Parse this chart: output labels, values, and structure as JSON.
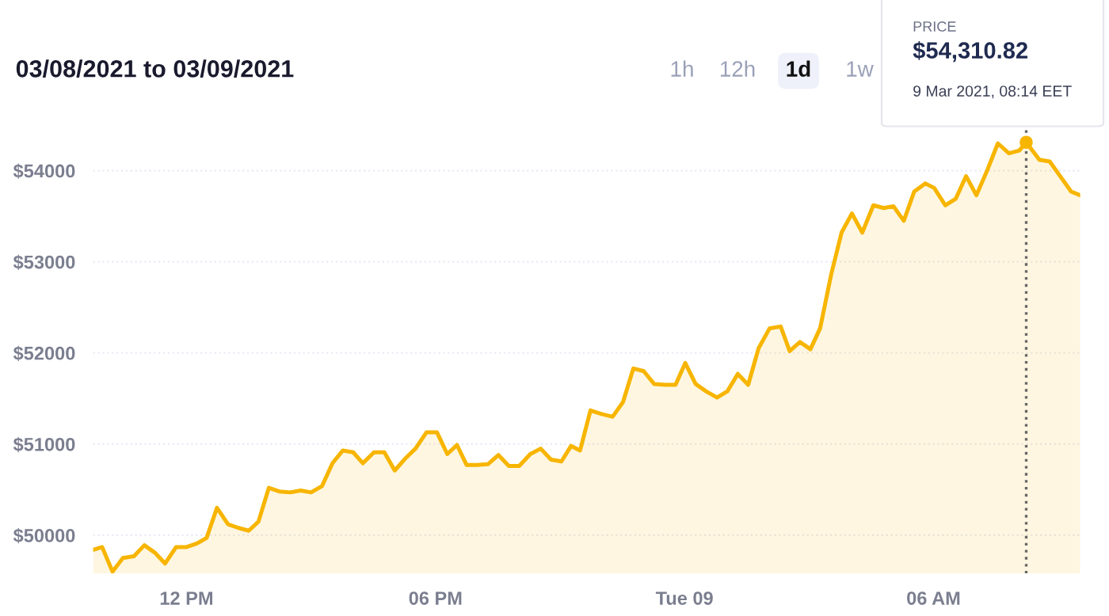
{
  "chart_data": {
    "type": "area",
    "title": "03/08/2021 to 03/09/2021",
    "annotations": [
      "1h",
      "12h",
      "1d",
      "1w",
      {
        "text": "PRICE\n$54,310.82\n9 Mar 2021, 08:14 EET",
        "x": "2021-03-09T08:14",
        "y": 54310.82
      }
    ],
    "x": [
      "2021-03-08T09:45",
      "2021-03-08T09:58",
      "2021-03-08T10:13",
      "2021-03-08T10:28",
      "2021-03-08T10:44",
      "2021-03-08T10:59",
      "2021-03-08T11:14",
      "2021-03-08T11:29",
      "2021-03-08T11:45",
      "2021-03-08T12:00",
      "2021-03-08T12:15",
      "2021-03-08T12:29",
      "2021-03-08T12:44",
      "2021-03-08T13:00",
      "2021-03-08T13:15",
      "2021-03-08T13:30",
      "2021-03-08T13:44",
      "2021-03-08T13:59",
      "2021-03-08T14:14",
      "2021-03-08T14:30",
      "2021-03-08T14:45",
      "2021-03-08T15:00",
      "2021-03-08T15:16",
      "2021-03-08T15:31",
      "2021-03-08T15:46",
      "2021-03-08T16:01",
      "2021-03-08T16:15",
      "2021-03-08T16:31",
      "2021-03-08T16:46",
      "2021-03-08T17:01",
      "2021-03-08T17:16",
      "2021-03-08T17:31",
      "2021-03-08T17:47",
      "2021-03-08T18:02",
      "2021-03-08T18:17",
      "2021-03-08T18:31",
      "2021-03-08T18:45",
      "2021-03-08T19:00",
      "2021-03-08T19:16",
      "2021-03-08T19:31",
      "2021-03-08T19:46",
      "2021-03-08T20:01",
      "2021-03-08T20:17",
      "2021-03-08T20:32",
      "2021-03-08T20:47",
      "2021-03-08T21:02",
      "2021-03-08T21:16",
      "2021-03-08T21:29",
      "2021-03-08T21:44",
      "2021-03-08T22:00",
      "2021-03-08T22:16",
      "2021-03-08T22:31",
      "2021-03-08T22:46",
      "2021-03-08T23:01",
      "2021-03-08T23:16",
      "2021-03-08T23:32",
      "2021-03-08T23:47",
      "2021-03-09T00:01",
      "2021-03-09T00:16",
      "2021-03-09T00:31",
      "2021-03-09T00:47",
      "2021-03-09T01:02",
      "2021-03-09T01:17",
      "2021-03-09T01:32",
      "2021-03-09T01:47",
      "2021-03-09T02:03",
      "2021-03-09T02:19",
      "2021-03-09T02:32",
      "2021-03-09T02:47",
      "2021-03-09T03:02",
      "2021-03-09T03:16",
      "2021-03-09T03:32",
      "2021-03-09T03:47",
      "2021-03-09T04:02",
      "2021-03-09T04:17",
      "2021-03-09T04:33",
      "2021-03-09T04:48",
      "2021-03-09T05:02",
      "2021-03-09T05:17",
      "2021-03-09T05:32",
      "2021-03-09T05:48",
      "2021-03-09T06:01",
      "2021-03-09T06:17",
      "2021-03-09T06:32",
      "2021-03-09T06:47",
      "2021-03-09T07:02",
      "2021-03-09T07:18",
      "2021-03-09T07:33",
      "2021-03-09T07:49",
      "2021-03-09T08:04",
      "2021-03-09T08:14",
      "2021-03-09T08:33",
      "2021-03-09T08:48",
      "2021-03-09T09:04",
      "2021-03-09T09:19",
      "2021-03-09T09:32"
    ],
    "series": [
      {
        "color": "#f7b500",
        "values": [
          49840,
          49870,
          49600,
          49750,
          49770,
          49890,
          49810,
          49690,
          49870,
          49870,
          49910,
          49970,
          50300,
          50120,
          50080,
          50050,
          50150,
          50520,
          50480,
          50470,
          50490,
          50470,
          50540,
          50790,
          50930,
          50910,
          50790,
          50910,
          50910,
          50710,
          50840,
          50950,
          51130,
          51130,
          50890,
          50990,
          50770,
          50770,
          50780,
          50880,
          50760,
          50760,
          50890,
          50950,
          50830,
          50810,
          50980,
          50930,
          51370,
          51330,
          51300,
          51460,
          51830,
          51800,
          51660,
          51650,
          51650,
          51890,
          51660,
          51580,
          51510,
          51580,
          51770,
          51650,
          52050,
          52270,
          52290,
          52020,
          52120,
          52040,
          52270,
          52860,
          53320,
          53530,
          53320,
          53620,
          53590,
          53610,
          53450,
          53770,
          53860,
          53810,
          53620,
          53690,
          53940,
          53730,
          54010,
          54300,
          54190,
          54220,
          54310.82,
          54120,
          54100,
          53930,
          53770,
          53730
        ]
      }
    ],
    "xlim": [
      "2021-03-08T09:45",
      "2021-03-09T09:32"
    ],
    "xticks": [
      {
        "value": "2021-03-08T12:00",
        "label": "12 PM"
      },
      {
        "value": "2021-03-08T18:00",
        "label": "06 PM"
      },
      {
        "value": "2021-03-09T00:00",
        "label": "Tue 09"
      },
      {
        "value": "2021-03-09T06:00",
        "label": "06 AM"
      }
    ],
    "ylim": [
      49580,
      54480
    ],
    "yticks": [
      {
        "value": 50000,
        "label": "$50000"
      },
      {
        "value": 51000,
        "label": "$51000"
      },
      {
        "value": 52000,
        "label": "$52000"
      },
      {
        "value": 53000,
        "label": "$53000"
      },
      {
        "value": 54000,
        "label": "$54000"
      }
    ],
    "ref_lines": [
      {
        "axis": "x",
        "value": "2021-03-09T08:14",
        "label": null,
        "color": "#666666",
        "line_style": "dotted"
      }
    ],
    "grid": "y",
    "legend": false
  }
}
